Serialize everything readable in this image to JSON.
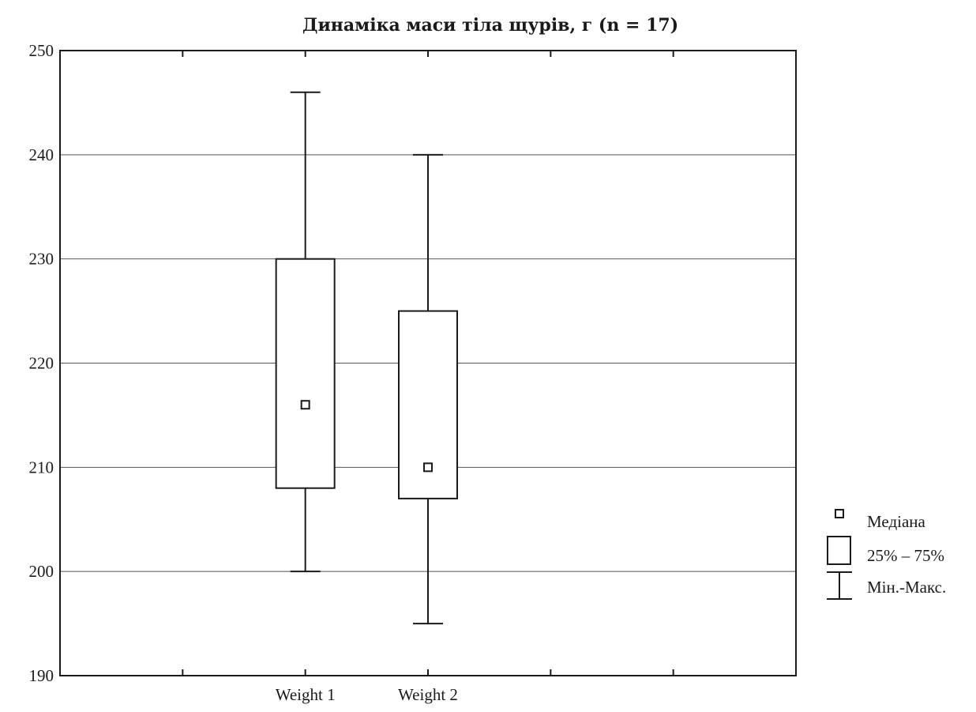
{
  "chart_data": {
    "type": "boxplot",
    "title": "Динаміка маси тіла щурів, г (n = 17)",
    "xlabel": "",
    "ylabel": "",
    "ylim": [
      190,
      250
    ],
    "yticks": [
      190,
      200,
      210,
      220,
      230,
      240,
      250
    ],
    "grid": true,
    "legend_position": "right",
    "categories": [
      "Weight 1",
      "Weight 2"
    ],
    "boxes": [
      {
        "category": "Weight 1",
        "min": 200,
        "q1": 208,
        "median": 216,
        "q3": 230,
        "max": 246
      },
      {
        "category": "Weight 2",
        "min": 195,
        "q1": 207,
        "median": 210,
        "q3": 225,
        "max": 240
      }
    ],
    "legend": {
      "median": "Медіана",
      "box": "25% – 75%",
      "whisker": "Мін.-Макс."
    }
  }
}
